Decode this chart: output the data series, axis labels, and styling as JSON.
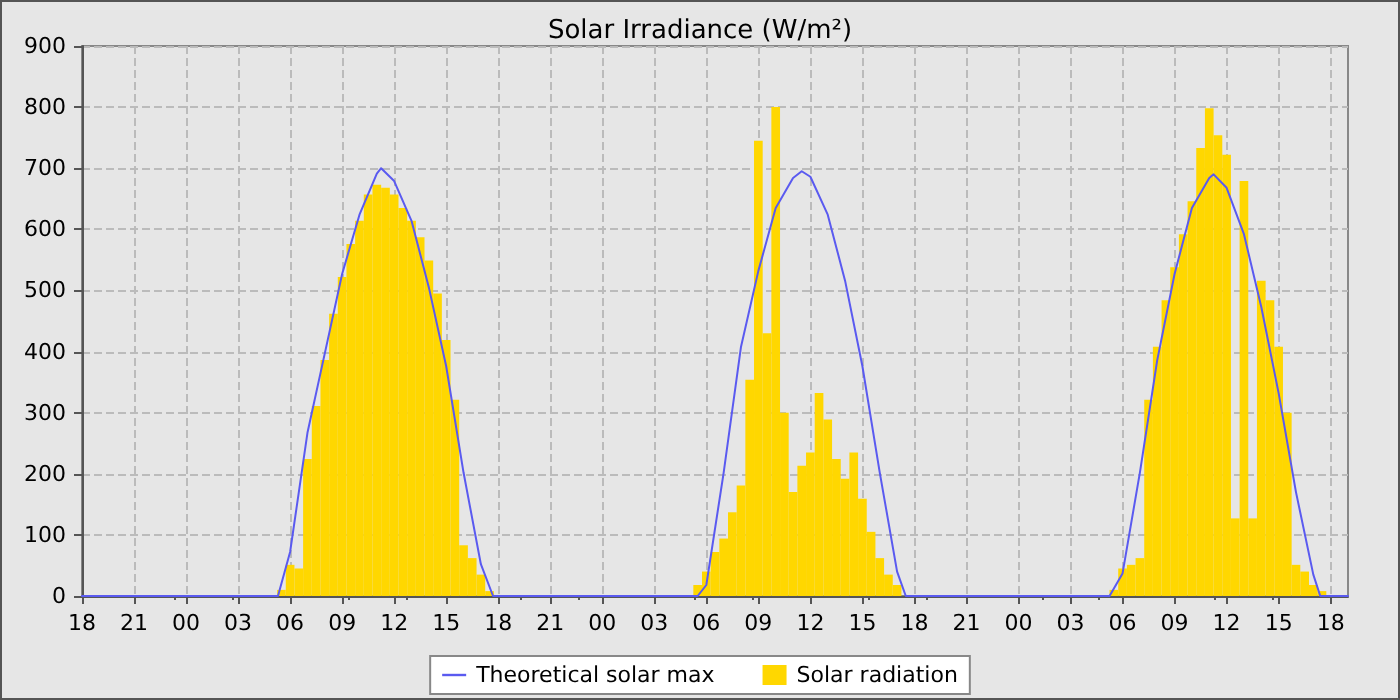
{
  "chart_data": {
    "type": "bar",
    "title": "Solar Irradiance (W/m²)",
    "xlim": [
      18,
      91
    ],
    "xticks": [
      {
        "value": 18,
        "label": "18"
      },
      {
        "value": 21,
        "label": "21"
      },
      {
        "value": 24,
        "label": "00"
      },
      {
        "value": 27,
        "label": "03"
      },
      {
        "value": 30,
        "label": "06"
      },
      {
        "value": 33,
        "label": "09"
      },
      {
        "value": 36,
        "label": "12"
      },
      {
        "value": 39,
        "label": "15"
      },
      {
        "value": 42,
        "label": "18"
      },
      {
        "value": 45,
        "label": "21"
      },
      {
        "value": 48,
        "label": "00"
      },
      {
        "value": 51,
        "label": "03"
      },
      {
        "value": 54,
        "label": "06"
      },
      {
        "value": 57,
        "label": "09"
      },
      {
        "value": 60,
        "label": "12"
      },
      {
        "value": 63,
        "label": "15"
      },
      {
        "value": 66,
        "label": "18"
      },
      {
        "value": 69,
        "label": "21"
      },
      {
        "value": 72,
        "label": "00"
      },
      {
        "value": 75,
        "label": "03"
      },
      {
        "value": 78,
        "label": "06"
      },
      {
        "value": 81,
        "label": "09"
      },
      {
        "value": 84,
        "label": "12"
      },
      {
        "value": 87,
        "label": "15"
      },
      {
        "value": 90,
        "label": "18"
      }
    ],
    "ylim": [
      0,
      900
    ],
    "yticks": [
      0,
      100,
      200,
      300,
      400,
      500,
      600,
      700,
      800,
      900
    ],
    "grid": true,
    "legend": "bottom",
    "series": [
      {
        "name": "Theoretical solar max",
        "type": "line",
        "marker": "none",
        "line_style": "solid",
        "color": "#5a5af0",
        "x": [
          18,
          29.3,
          30,
          31,
          32,
          33,
          34,
          35,
          35.25,
          36,
          37,
          38,
          39,
          40,
          41,
          41.7,
          53.5,
          54,
          55,
          56,
          57,
          58,
          59,
          59.5,
          60,
          61,
          62,
          63,
          64,
          65,
          65.5,
          77.25,
          78,
          79,
          80,
          81,
          82,
          83,
          83.25,
          84,
          85,
          86,
          87,
          88,
          89,
          89.4,
          91
        ],
        "values": [
          0,
          0,
          72,
          267,
          397,
          527,
          624,
          691,
          700,
          679,
          614,
          505,
          376,
          202,
          52,
          0,
          0,
          18,
          202,
          408,
          532,
          635,
          684,
          695,
          686,
          624,
          516,
          376,
          202,
          40,
          0,
          0,
          37,
          202,
          386,
          527,
          635,
          684,
          690,
          668,
          592,
          473,
          332,
          170,
          35,
          0,
          0
        ]
      },
      {
        "name": "Solar radiation",
        "color": "#ffd700",
        "x": [
          29.5,
          30,
          30.5,
          31,
          31.5,
          32,
          32.5,
          33,
          33.5,
          34,
          34.5,
          35,
          35.5,
          36,
          36.5,
          37,
          37.5,
          38,
          38.5,
          39,
          39.5,
          40,
          40.5,
          41,
          41.5,
          53.5,
          54,
          54.5,
          55,
          55.5,
          56,
          56.5,
          57,
          57.5,
          58,
          58.5,
          59,
          59.5,
          60,
          60.5,
          61,
          61.5,
          62,
          62.5,
          63,
          63.5,
          64,
          64.5,
          65,
          77.5,
          78,
          78.5,
          79,
          79.5,
          80,
          80.5,
          81,
          81.5,
          82,
          82.5,
          83,
          83.5,
          84,
          84.5,
          85,
          85.5,
          86,
          86.5,
          87,
          87.5,
          88,
          88.5,
          89,
          89.5
        ],
        "values": [
          10,
          51,
          45,
          224,
          311,
          386,
          462,
          522,
          576,
          614,
          657,
          673,
          668,
          657,
          635,
          614,
          587,
          549,
          495,
          419,
          321,
          83,
          62,
          35,
          8,
          18,
          40,
          72,
          94,
          137,
          181,
          354,
          745,
          430,
          800,
          300,
          170,
          213,
          235,
          332,
          289,
          224,
          192,
          235,
          159,
          105,
          62,
          35,
          18,
          10,
          45,
          51,
          62,
          321,
          408,
          484,
          538,
          592,
          646,
          733,
          798,
          754,
          722,
          127,
          679,
          127,
          516,
          484,
          408,
          300,
          51,
          40,
          18,
          8
        ]
      }
    ]
  }
}
